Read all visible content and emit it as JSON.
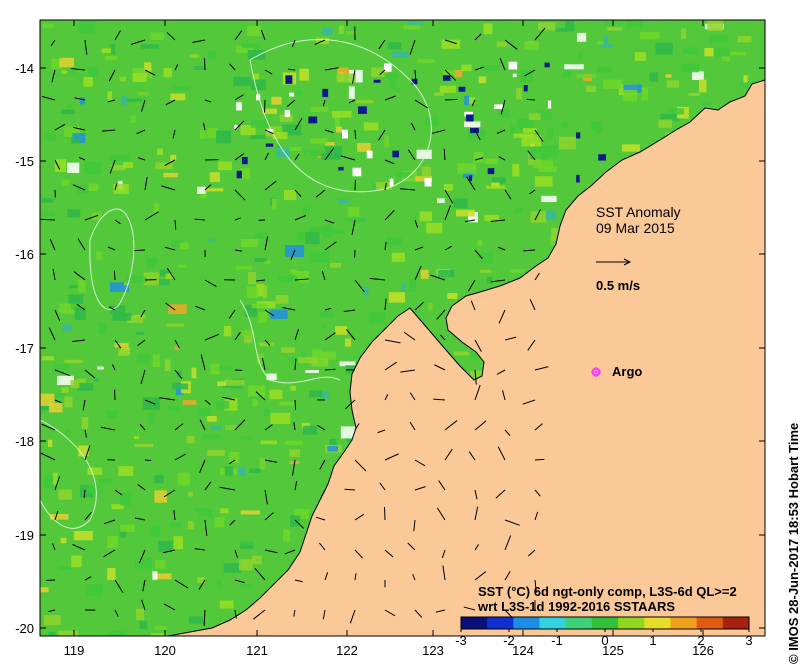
{
  "title": {
    "line1": "SST Anomaly",
    "line2": "09 Mar 2015"
  },
  "vector_scale": {
    "label": "0.5 m/s"
  },
  "marker": {
    "label": "Argo",
    "color": "#ff33ff"
  },
  "legend": {
    "line1": "SST (°C) 6d ngt-only comp, L3S-6d QL>=2",
    "line2": "wrt L3S-1d 1992-2016 SSTAARS",
    "ticks": [
      "-3",
      "-2",
      "-1",
      "0",
      "1",
      "2",
      "3"
    ],
    "colors": [
      "#08107a",
      "#0f2fd0",
      "#1a8fe8",
      "#32d2e0",
      "#3fd07a",
      "#2fc23a",
      "#8fd81e",
      "#e6dc2a",
      "#f0a020",
      "#e05a14",
      "#a8200e"
    ]
  },
  "x_axis": {
    "ticks": [
      "119",
      "120",
      "121",
      "122",
      "123",
      "124",
      "125",
      "126"
    ]
  },
  "y_axis": {
    "ticks": [
      "-14",
      "-15",
      "-16",
      "-17",
      "-18",
      "-19",
      "-20"
    ]
  },
  "credit": "© IMOS 28-Jun-2017 18:53 Hobart Time",
  "colors": {
    "land": "#fbc898",
    "ocean_base": "#52c83a",
    "coast": "#000000",
    "contour": "#dff5dd"
  }
}
